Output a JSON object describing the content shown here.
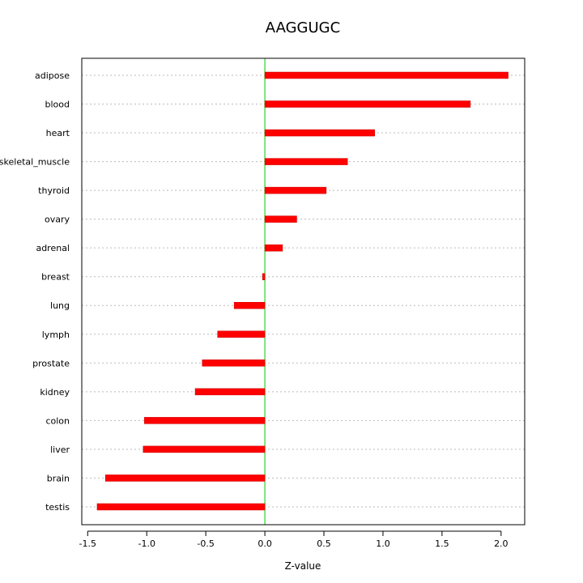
{
  "chart_data": {
    "type": "bar",
    "orientation": "horizontal",
    "title": "AAGGUGC",
    "xlabel": "Z-value",
    "ylabel": "",
    "categories": [
      "adipose",
      "blood",
      "heart",
      "skeletal_muscle",
      "thyroid",
      "ovary",
      "adrenal",
      "breast",
      "lung",
      "lymph",
      "prostate",
      "kidney",
      "colon",
      "liver",
      "brain",
      "testis"
    ],
    "values": [
      2.06,
      1.74,
      0.93,
      0.7,
      0.52,
      0.27,
      0.15,
      -0.02,
      -0.26,
      -0.4,
      -0.53,
      -0.59,
      -1.02,
      -1.03,
      -1.35,
      -1.42
    ],
    "xlim": [
      -1.55,
      2.2
    ],
    "xticks": [
      -1.5,
      -1.0,
      -0.5,
      0.0,
      0.5,
      1.0,
      1.5,
      2.0
    ],
    "xtick_labels": [
      "-1.5",
      "-1.0",
      "-0.5",
      "0.0",
      "0.5",
      "1.0",
      "1.5",
      "2.0"
    ],
    "reference_line": 0,
    "grid": "horizontal dotted",
    "colors": {
      "bar": "#ff0000",
      "bar_edge": "#cc0000",
      "reference_line": "#00cc00",
      "grid": "#bbbbbb",
      "frame": "#000000"
    }
  }
}
